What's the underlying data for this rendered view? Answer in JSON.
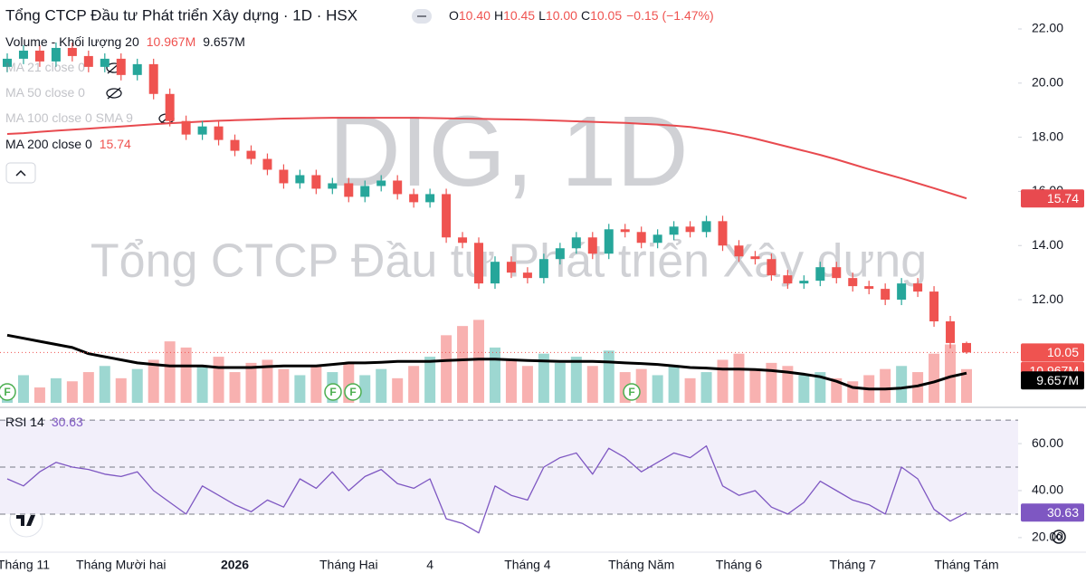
{
  "chart_data": [
    {
      "type": "candlestick",
      "title": "Tổng CTCP Đầu tư Phát triển Xây dựng · 1D · HSX",
      "ohlc": [
        {
          "key": "O",
          "text": "10.40"
        },
        {
          "key": "H",
          "text": "10.45"
        },
        {
          "key": "L",
          "text": "10.00"
        },
        {
          "key": "C",
          "text": "10.05"
        }
      ],
      "change": "−0.15 (−1.47%)",
      "watermark": [
        "DIG, 1D",
        "Tổng CTCP Đầu tư Phát triển Xây dựng"
      ],
      "indicators": [
        {
          "name": "Volume - Khối lượng 20",
          "hidden": false,
          "values": [
            {
              "text": "10.967M",
              "color": "#ef5350"
            },
            {
              "text": "9.657M",
              "color": "#131722"
            }
          ]
        },
        {
          "name": "MA 21 close 0",
          "hidden": true
        },
        {
          "name": "MA 50 close 0",
          "hidden": true
        },
        {
          "name": "MA 100 close 0 SMA 9",
          "hidden": true
        },
        {
          "name": "MA 200 close 0",
          "hidden": false,
          "values": [
            {
              "text": "15.74",
              "color": "#ef5350"
            }
          ]
        }
      ],
      "event_label": "F",
      "categories": [
        null,
        "Tháng 11",
        null,
        null,
        null,
        null,
        null,
        "Tháng Mười hai",
        null,
        null,
        null,
        null,
        null,
        null,
        "2026",
        null,
        null,
        null,
        null,
        null,
        null,
        "Tháng Hai",
        null,
        null,
        null,
        null,
        "4",
        null,
        null,
        null,
        null,
        null,
        "Tháng 4",
        null,
        null,
        null,
        null,
        null,
        null,
        "Tháng Năm",
        null,
        null,
        null,
        null,
        null,
        "Tháng 6",
        null,
        null,
        null,
        null,
        null,
        null,
        "Tháng 7",
        null,
        null,
        null,
        null,
        null,
        null,
        "Tháng Tám"
      ],
      "open": [
        20.6,
        20.9,
        21.2,
        20.8,
        21.3,
        21.0,
        20.6,
        20.9,
        20.3,
        20.7,
        19.6,
        18.6,
        18.1,
        18.4,
        17.9,
        17.5,
        17.2,
        16.8,
        16.3,
        16.6,
        16.1,
        16.3,
        15.8,
        16.2,
        16.4,
        15.9,
        15.6,
        15.9,
        14.3,
        14.1,
        12.6,
        13.4,
        13.0,
        12.8,
        13.5,
        13.9,
        14.3,
        13.7,
        14.6,
        14.5,
        14.1,
        14.4,
        14.7,
        14.5,
        14.9,
        14.0,
        13.6,
        13.5,
        12.9,
        12.6,
        12.7,
        13.2,
        12.8,
        12.5,
        12.4,
        12.0,
        12.6,
        12.3,
        11.2,
        10.4
      ],
      "high": [
        21.1,
        21.4,
        21.4,
        21.5,
        21.5,
        21.2,
        21.1,
        21.1,
        20.9,
        20.9,
        19.8,
        18.8,
        18.6,
        18.6,
        18.1,
        17.7,
        17.4,
        17.0,
        16.8,
        16.8,
        16.5,
        16.5,
        16.4,
        16.6,
        16.6,
        16.1,
        16.1,
        16.1,
        14.5,
        14.3,
        13.6,
        13.6,
        13.2,
        13.7,
        14.1,
        14.5,
        14.5,
        14.8,
        14.8,
        14.7,
        14.6,
        14.9,
        14.9,
        15.1,
        15.1,
        14.2,
        13.8,
        13.7,
        13.1,
        12.9,
        13.4,
        13.4,
        13.0,
        12.7,
        12.6,
        12.8,
        12.8,
        12.5,
        11.4,
        10.45
      ],
      "low": [
        20.4,
        20.7,
        20.6,
        20.6,
        20.8,
        20.4,
        20.4,
        20.1,
        20.1,
        19.4,
        18.4,
        17.9,
        17.9,
        17.7,
        17.3,
        17.0,
        16.6,
        16.1,
        16.1,
        15.9,
        15.9,
        15.6,
        15.6,
        16.0,
        15.7,
        15.4,
        15.4,
        14.1,
        13.9,
        12.4,
        12.4,
        12.8,
        12.6,
        12.6,
        13.3,
        13.7,
        13.5,
        13.5,
        14.3,
        13.9,
        13.9,
        14.2,
        14.3,
        14.3,
        13.8,
        13.4,
        13.3,
        12.7,
        12.4,
        12.4,
        12.5,
        12.6,
        12.3,
        12.2,
        11.8,
        11.8,
        12.1,
        11.0,
        10.2,
        10.0
      ],
      "close": [
        20.9,
        21.2,
        20.8,
        21.3,
        21.0,
        20.6,
        20.9,
        20.3,
        20.7,
        19.6,
        18.6,
        18.1,
        18.4,
        17.9,
        17.5,
        17.2,
        16.8,
        16.3,
        16.6,
        16.1,
        16.3,
        15.8,
        16.2,
        16.4,
        15.9,
        15.6,
        15.9,
        14.3,
        14.1,
        12.6,
        13.4,
        13.0,
        12.8,
        13.5,
        13.9,
        14.3,
        13.7,
        14.6,
        14.5,
        14.1,
        14.4,
        14.7,
        14.5,
        14.9,
        14.0,
        13.6,
        13.5,
        12.9,
        12.6,
        12.7,
        13.2,
        12.8,
        12.5,
        12.4,
        12.0,
        12.6,
        12.3,
        11.2,
        10.4,
        10.05
      ],
      "ma200": [
        18.12,
        18.15,
        18.2,
        18.24,
        18.28,
        18.32,
        18.36,
        18.4,
        18.44,
        18.48,
        18.52,
        18.55,
        18.58,
        18.61,
        18.63,
        18.65,
        18.67,
        18.69,
        18.7,
        18.71,
        18.72,
        18.72,
        18.72,
        18.72,
        18.72,
        18.72,
        18.71,
        18.7,
        18.69,
        18.68,
        18.67,
        18.66,
        18.65,
        18.63,
        18.61,
        18.59,
        18.57,
        18.55,
        18.53,
        18.5,
        18.47,
        18.43,
        18.38,
        18.3,
        18.2,
        18.08,
        17.95,
        17.8,
        17.65,
        17.5,
        17.35,
        17.18,
        17.0,
        16.82,
        16.65,
        16.48,
        16.3,
        16.12,
        15.93,
        15.74
      ],
      "volume": [
        6,
        9,
        5,
        8,
        7,
        10,
        12,
        8,
        11,
        14,
        20,
        18,
        12,
        15,
        10,
        13,
        14,
        11,
        9,
        12,
        10,
        13,
        9,
        11,
        8,
        12,
        15,
        22,
        25,
        27,
        18,
        14,
        12,
        16,
        13,
        15,
        12,
        17,
        10,
        11,
        9,
        12,
        8,
        10,
        14,
        16,
        11,
        13,
        12,
        9,
        10,
        8,
        7,
        9,
        11,
        12,
        10,
        16,
        19,
        10.967
      ],
      "volume_ma": [
        22,
        21,
        20,
        19,
        18,
        16,
        15,
        14,
        13,
        12.5,
        12,
        12,
        12,
        11.5,
        11.5,
        11.5,
        11.8,
        12,
        12,
        12,
        12.5,
        13,
        13,
        13.2,
        13.5,
        13.5,
        13.5,
        13.8,
        14,
        14.2,
        14.2,
        14,
        13.8,
        13.6,
        13.5,
        13.5,
        13.5,
        13.3,
        13,
        12.8,
        12.5,
        12,
        11.5,
        11.3,
        11,
        11,
        10.8,
        10.5,
        10,
        9.3,
        8.5,
        7,
        5,
        4.5,
        4.5,
        4.8,
        5.5,
        6.8,
        8.5,
        9.657
      ],
      "ylim": [
        8.09,
        23.07
      ],
      "yticks": [
        {
          "value": 12,
          "label": "12.00"
        },
        {
          "value": 14,
          "label": "14.00"
        },
        {
          "value": 16,
          "label": "16.00"
        },
        {
          "value": 18,
          "label": "18.00"
        },
        {
          "value": 20,
          "label": "20.00"
        },
        {
          "value": 22,
          "label": "22.00"
        }
      ],
      "vlim": [
        0,
        33
      ],
      "up_color": "#26a69a",
      "down_color": "#ef5350",
      "ma200_color": "#e84a4f",
      "volume_ma_color": "#000000"
    },
    {
      "type": "line",
      "title": "RSI 14",
      "value_label": "30.63",
      "color": "#7e57c2",
      "values": [
        45,
        42,
        48,
        52,
        50,
        49,
        47,
        46,
        48,
        40,
        35,
        30,
        42,
        38,
        34,
        31,
        36,
        33,
        45,
        41,
        48,
        40,
        46,
        49,
        43,
        41,
        45,
        28,
        26,
        22,
        42,
        38,
        36,
        50,
        54,
        56,
        47,
        58,
        54,
        48,
        52,
        56,
        54,
        59,
        42,
        38,
        40,
        33,
        30,
        35,
        44,
        40,
        36,
        34,
        30,
        50,
        45,
        32,
        27,
        30.63
      ],
      "ylim": [
        13.8,
        73.5
      ],
      "yticks": [
        {
          "value": 20,
          "label": "20.00"
        },
        {
          "value": 40,
          "label": "40.00"
        },
        {
          "value": 60,
          "label": "60.00"
        }
      ],
      "band_lines": [
        70,
        50,
        30
      ]
    }
  ]
}
